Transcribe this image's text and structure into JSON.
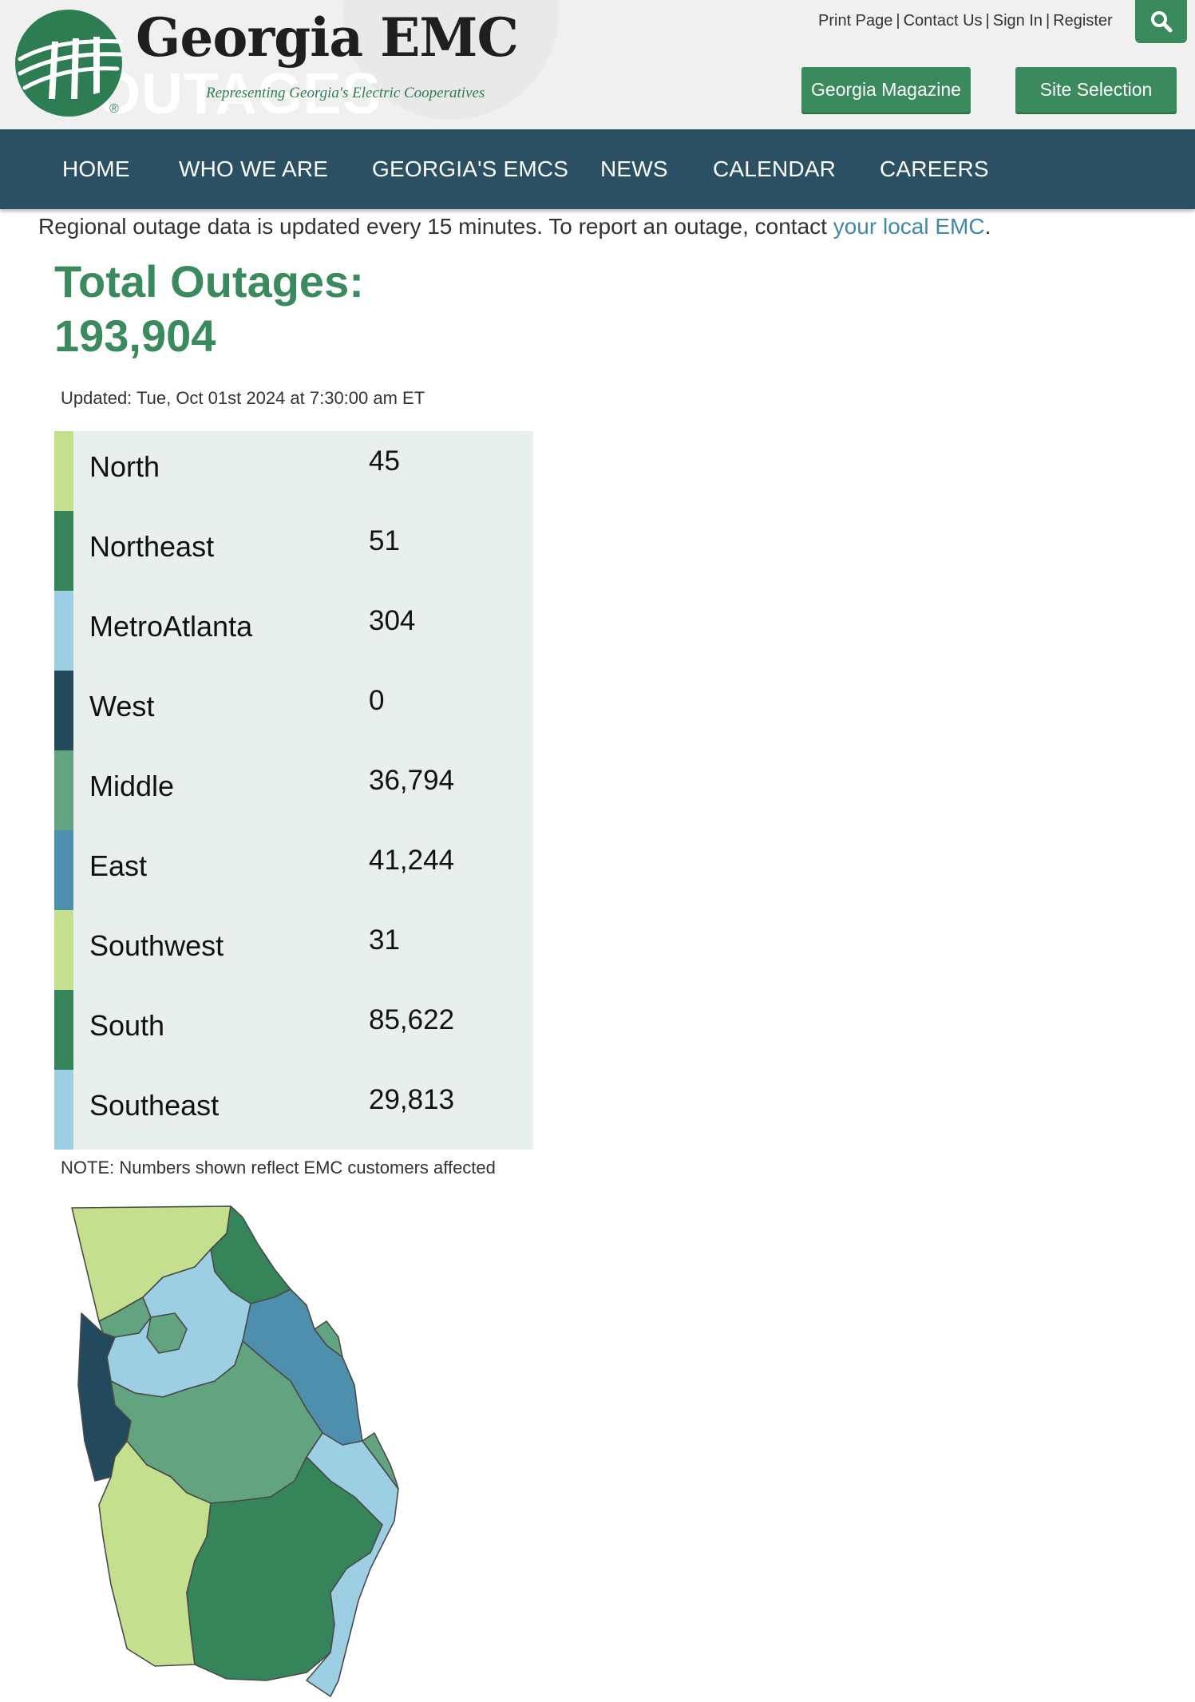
{
  "header": {
    "brand_name": "Georgia EMC",
    "tagline": "Representing Georgia's Electric Cooperatives",
    "registered_mark": "®",
    "background_word": "OUTAGES",
    "utility_links": [
      "Print Page",
      "Contact Us",
      "Sign In",
      "Register"
    ],
    "buttons": {
      "magazine": "Georgia Magazine",
      "site_selection": "Site Selection"
    },
    "search_icon": "search-icon"
  },
  "nav": {
    "items": [
      "HOME",
      "WHO WE ARE",
      "GEORGIA'S EMCS",
      "NEWS",
      "CALENDAR",
      "CAREERS"
    ]
  },
  "content": {
    "notice_text": "Regional outage data is updated every 15 minutes. To report an outage, contact ",
    "notice_link": "your local EMC",
    "notice_end": ".",
    "total_label": "Total Outages:",
    "total_value": "193,904",
    "updated": "Updated: Tue, Oct 01st 2024 at 7:30:00 am ET",
    "note": "NOTE: Numbers shown reflect EMC customers affected"
  },
  "regions": [
    {
      "name": "North",
      "count": "45",
      "color": "#c4e08f"
    },
    {
      "name": "Northeast",
      "count": "51",
      "color": "#36845a"
    },
    {
      "name": "MetroAtlanta",
      "count": "304",
      "color": "#9ccfe4"
    },
    {
      "name": "West",
      "count": "0",
      "color": "#22495c"
    },
    {
      "name": "Middle",
      "count": "36,794",
      "color": "#62a47f"
    },
    {
      "name": "East",
      "count": "41,244",
      "color": "#4e8fae"
    },
    {
      "name": "Southwest",
      "count": "31",
      "color": "#c4e08f"
    },
    {
      "name": "South",
      "count": "85,622",
      "color": "#36845a"
    },
    {
      "name": "Southeast",
      "count": "29,813",
      "color": "#9ccfe4"
    }
  ],
  "colors": {
    "brand_green": "#3a8a5d",
    "nav_bg": "#2c5063",
    "link_blue": "#3f8aa8",
    "table_bg": "#e8f0ec"
  }
}
